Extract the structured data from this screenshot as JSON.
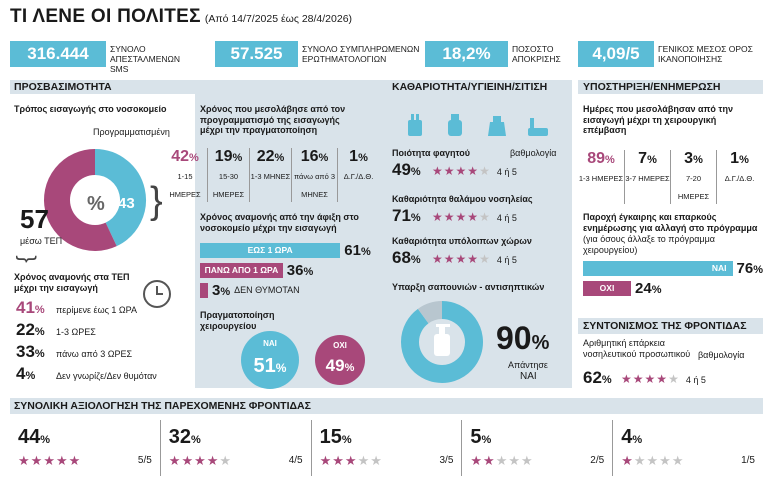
{
  "header": {
    "title": "ΤΙ ΛΕΝΕ ΟΙ ΠΟΛΙΤΕΣ",
    "date_range": "(Από 14/7/2025 έως 28/4/2026)"
  },
  "kpis": [
    {
      "value": "316.444",
      "label": "ΣΥΝΟΛΟ ΑΠΕΣΤΑΛΜΕΝΩΝ SMS"
    },
    {
      "value": "57.525",
      "label": "ΣΥΝΟΛΟ ΣΥΜΠΛΗΡΩΜΕΝΩΝ ΕΡΩΤΗΜΑΤΟΛΟΓΙΩΝ"
    },
    {
      "value": "18,2%",
      "label": "ΠΟΣΟΣΤΟ ΑΠΟΚΡΙΣΗΣ"
    },
    {
      "value": "4,09/5",
      "label": "ΓΕΝΙΚΟΣ ΜΕΣΟΣ ΟΡΟΣ ΙΚΑΝΟΠΟΙΗΣΗΣ"
    }
  ],
  "access": {
    "title": "ΠΡΟΣΒΑΣΙΜΟΤΗΤΑ",
    "entry_mode_title": "Τρόπος εισαγωγής στο νοσοκομείο",
    "scheduled_label": "Προγραμματισμένη",
    "donut": {
      "scheduled": 43,
      "center_symbol": "%",
      "tep": 57,
      "colors": {
        "scheduled": "#5bbcd6",
        "tep": "#a8487a"
      }
    },
    "tep_value": "57",
    "tep_caption": "μέσω ΤΕΠ",
    "wait_tep_title": "Χρόνος αναμονής στα ΤΕΠ μέχρι την εισαγωγή",
    "wait_tep": [
      {
        "value": "41",
        "sym": "%",
        "label": "περίμενε έως 1 ΩΡΑ"
      },
      {
        "value": "22",
        "sym": "%",
        "label": "1-3 ΩΡΕΣ"
      },
      {
        "value": "33",
        "sym": "%",
        "label": "πάνω από 3 ΩΡΕΣ"
      },
      {
        "value": "4",
        "sym": "%",
        "label": "Δεν γνωρίζε/Δεν θυμόταν"
      }
    ],
    "sched_time_title": "Χρόνος που μεσολάβησε από τον προγραμματισμό της εισαγωγής μέχρι την πραγματοποίηση",
    "sched_time": [
      {
        "value": "42",
        "sym": "%",
        "label": "1-15 ΗΜΕΡΕΣ"
      },
      {
        "value": "19",
        "sym": "%",
        "label": "15-30 ΗΜΕΡΕΣ"
      },
      {
        "value": "22",
        "sym": "%",
        "label": "1-3 ΜΗΝΕΣ"
      },
      {
        "value": "16",
        "sym": "%",
        "label": "πάνω από 3 ΜΗΝΕΣ"
      },
      {
        "value": "1",
        "sym": "%",
        "label": "Δ.Γ./Δ.Θ."
      }
    ],
    "arrival_title": "Χρόνος αναμονής από την άφιξη στο νοσοκομείο μέχρι την εισαγωγή",
    "arrival": [
      {
        "label": "ΕΩΣ 1 ΩΡΑ",
        "value": 61,
        "text": "61",
        "sym": "%",
        "color": "#5bbcd6"
      },
      {
        "label": "ΠΑΝΩ ΑΠΟ 1 ΩΡΑ",
        "value": 36,
        "text": "36",
        "sym": "%",
        "color": "#a8487a"
      },
      {
        "label": "ΔΕΝ ΘΥΜΟΤΑΝ",
        "value": 3,
        "text": "3",
        "sym": "%",
        "color": "#a8487a"
      }
    ],
    "surgery_title": "Πραγματοποίηση χειρουργείου",
    "surgery_yes": {
      "label": "ΝΑΙ",
      "value": "51",
      "sym": "%"
    },
    "surgery_no": {
      "label": "ΟΧΙ",
      "value": "49",
      "sym": "%"
    }
  },
  "clean": {
    "title": "ΚΑΘΑΡΙΟΤΗΤΑ/ΥΓΙΕΙΝΗ/ΣΙΤΙΣΗ",
    "rating_word": "βαθμολογία",
    "items": [
      {
        "label": "Ποιότητα φαγητού",
        "value": "49",
        "sym": "%",
        "stars": 4,
        "score": "4 ή 5"
      },
      {
        "label": "Καθαριότητα θαλάμου νοσηλείας",
        "value": "71",
        "sym": "%",
        "stars": 4,
        "score": "4 ή 5"
      },
      {
        "label": "Καθαριότητα υπόλοιπων χώρων",
        "value": "68",
        "sym": "%",
        "stars": 4,
        "score": "4 ή 5"
      }
    ],
    "soap_title": "Υπαρξη σαπουνιών - αντισηπτικών",
    "soap_value": "90",
    "soap_sym": "%",
    "soap_caption": "Απάντησε",
    "soap_answer": "ΝΑΙ"
  },
  "support": {
    "title": "ΥΠΟΣΤΗΡΙΞΗ/ΕΝΗΜΕΡΩΣΗ",
    "surgery_days_title": "Ημέρες που μεσολάβησαν από την εισαγωγή μέχρι τη χειρουργική επέμβαση",
    "surgery_days": [
      {
        "value": "89",
        "sym": "%",
        "label": "1-3 ΗΜΕΡΕΣ"
      },
      {
        "value": "7",
        "sym": "%",
        "label": "3-7 ΗΜΕΡΕΣ"
      },
      {
        "value": "3",
        "sym": "%",
        "label": "7-20 ΗΜΕΡΕΣ"
      },
      {
        "value": "1",
        "sym": "%",
        "label": "Δ.Γ./Δ.Θ."
      }
    ],
    "info_title": "Παροχή έγκαιρης και επαρκούς ενημέρωσης για αλλαγή στο πρόγραμμα",
    "info_sub": "(για όσους άλλαξε το πρόγραμμα χειρουργείου)",
    "info": [
      {
        "label": "ΝΑΙ",
        "value": 76,
        "text": "76",
        "sym": "%",
        "color": "#5bbcd6"
      },
      {
        "label": "ΟΧΙ",
        "value": 24,
        "text": "24",
        "sym": "%",
        "color": "#a8487a"
      }
    ],
    "coord_title": "ΣΥΝΤΟΝΙΣΜΟΣ ΤΗΣ ΦΡΟΝΤΙΔΑΣ",
    "coord_label": "Αριθμητική επάρκεια νοσηλευτικού προσωπικού",
    "coord_rating_word": "βαθμολογία",
    "coord_value": "62",
    "coord_sym": "%",
    "coord_stars": 4,
    "coord_score": "4 ή 5"
  },
  "overall": {
    "title": "ΣΥΝΟΛΙΚΗ ΑΞΙΟΛΟΓΗΣΗ ΤΗΣ ΠΑΡΕΧΟΜΕΝΗΣ ΦΡΟΝΤΙΔΑΣ",
    "items": [
      {
        "value": "44",
        "sym": "%",
        "stars": 5,
        "score": "5/5"
      },
      {
        "value": "32",
        "sym": "%",
        "stars": 4,
        "score": "4/5"
      },
      {
        "value": "15",
        "sym": "%",
        "stars": 3,
        "score": "3/5"
      },
      {
        "value": "5",
        "sym": "%",
        "stars": 2,
        "score": "2/5"
      },
      {
        "value": "4",
        "sym": "%",
        "stars": 1,
        "score": "1/5"
      }
    ]
  },
  "colors": {
    "accent": "#5bbcd6",
    "magenta": "#a8487a",
    "band": "#d9e3ea"
  }
}
